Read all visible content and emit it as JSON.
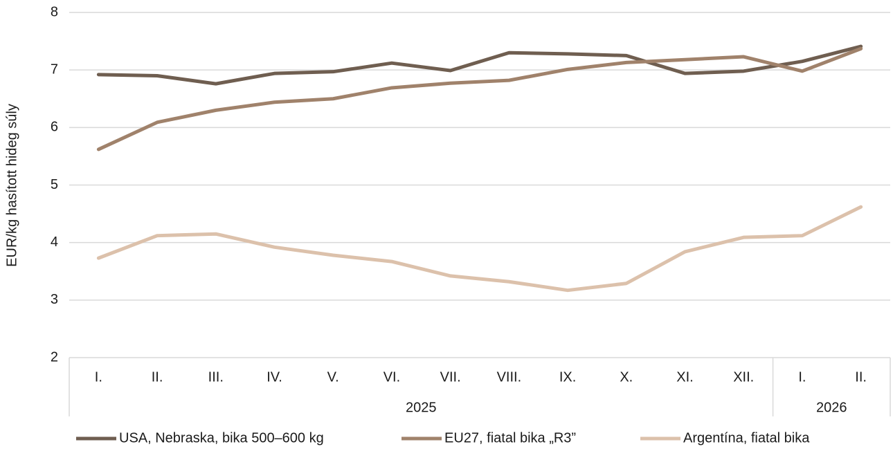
{
  "chart_data": {
    "type": "line",
    "y_label": "EUR/kg hasított hideg súly",
    "category_groups": [
      {
        "label": "2025",
        "categories": [
          "I.",
          "II.",
          "III.",
          "IV.",
          "V.",
          "VI.",
          "VII.",
          "VIII.",
          "IX.",
          "X.",
          "XI.",
          "XII."
        ]
      },
      {
        "label": "2026",
        "categories": [
          "I.",
          "II."
        ]
      }
    ],
    "series": [
      {
        "name": "USA, Nebraska, bika 500–600 kg",
        "color": "#6f5e50",
        "values": [
          6.92,
          6.9,
          6.76,
          6.94,
          6.97,
          7.12,
          6.99,
          7.3,
          7.28,
          7.25,
          6.94,
          6.98,
          7.15,
          7.41
        ]
      },
      {
        "name": "EU27, fiatal bika „R3”",
        "color": "#a0826b",
        "values": [
          5.62,
          6.09,
          6.3,
          6.44,
          6.5,
          6.69,
          6.77,
          6.82,
          7.01,
          7.13,
          7.18,
          7.23,
          6.98,
          7.37
        ]
      },
      {
        "name": "Argentína, fiatal bika",
        "color": "#dcc1ab",
        "values": [
          3.73,
          4.12,
          4.15,
          3.92,
          3.78,
          3.67,
          3.42,
          3.32,
          3.17,
          3.29,
          3.84,
          4.09,
          4.12,
          4.62
        ]
      }
    ],
    "ylim": [
      2,
      8
    ],
    "yticks": [
      2,
      3,
      4,
      5,
      6,
      7,
      8
    ],
    "grid": true,
    "legend": "bottom"
  }
}
